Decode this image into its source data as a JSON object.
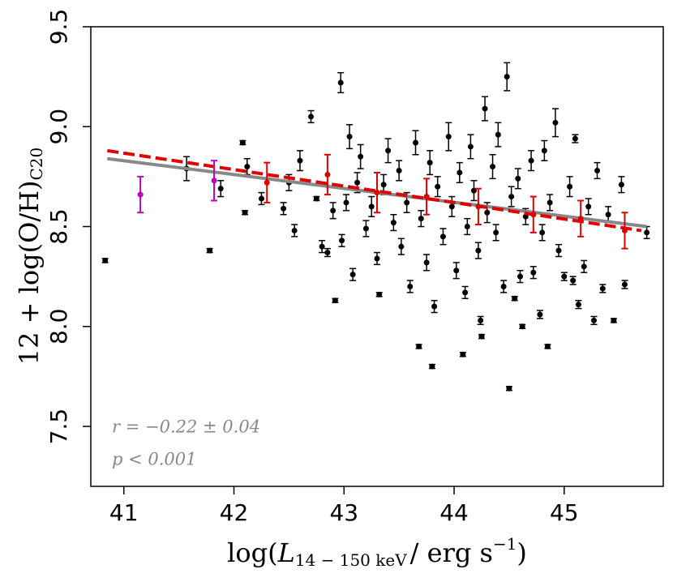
{
  "chart_data": {
    "type": "scatter",
    "xlabel": [
      "log(",
      "L",
      "14 − 150 keV",
      "/ erg s",
      "−1",
      ")"
    ],
    "ylabel": [
      "12 + log(O/H)",
      "C20"
    ],
    "annotations": [
      "r = −0.22 ± 0.04",
      "p < 0.001"
    ],
    "annotation_color": "#888888",
    "xlim": [
      40.7,
      45.9
    ],
    "ylim": [
      7.2,
      9.5
    ],
    "xticks": [
      41,
      42,
      43,
      44,
      45
    ],
    "yticks": [
      7.5,
      {
        "value": 8,
        "label": "8.0"
      },
      8.5,
      {
        "value": 9,
        "label": "9.0"
      },
      9.5
    ],
    "series": [
      {
        "color": "#000000",
        "x": [
          40.83,
          41.57,
          41.78,
          41.88,
          42.08,
          42.1,
          42.12,
          42.25,
          42.45,
          42.5,
          42.55,
          42.6,
          42.7,
          42.75,
          42.8,
          42.85,
          42.9,
          42.92,
          42.97,
          42.98,
          43.02,
          43.05,
          43.08,
          43.12,
          43.15,
          43.2,
          43.25,
          43.3,
          43.32,
          43.36,
          43.4,
          43.45,
          43.5,
          43.52,
          43.57,
          43.6,
          43.65,
          43.68,
          43.7,
          43.75,
          43.78,
          43.8,
          43.82,
          43.85,
          43.9,
          43.95,
          43.98,
          44.02,
          44.05,
          44.08,
          44.1,
          44.12,
          44.15,
          44.18,
          44.22,
          44.24,
          44.25,
          44.28,
          44.3,
          44.35,
          44.38,
          44.4,
          44.45,
          44.48,
          44.5,
          44.52,
          44.55,
          44.58,
          44.6,
          44.62,
          44.65,
          44.7,
          44.72,
          44.78,
          44.8,
          44.82,
          44.85,
          44.87,
          44.92,
          44.95,
          45.0,
          45.05,
          45.08,
          45.1,
          45.13,
          45.18,
          45.22,
          45.27,
          45.3,
          45.35,
          45.4,
          45.45,
          45.52,
          45.55,
          45.75
        ],
        "values": [
          8.33,
          8.79,
          8.38,
          8.69,
          8.92,
          8.57,
          8.8,
          8.64,
          8.59,
          8.72,
          8.48,
          8.83,
          9.05,
          8.64,
          8.4,
          8.37,
          8.58,
          8.13,
          9.22,
          8.43,
          8.62,
          8.95,
          8.26,
          8.72,
          8.85,
          8.49,
          8.6,
          8.34,
          8.16,
          8.71,
          8.88,
          8.52,
          8.78,
          8.4,
          8.62,
          8.2,
          8.92,
          7.9,
          8.54,
          8.32,
          8.82,
          7.8,
          8.1,
          8.7,
          8.45,
          8.95,
          8.6,
          8.28,
          8.77,
          7.86,
          8.17,
          8.5,
          8.9,
          8.68,
          8.38,
          8.03,
          7.95,
          9.09,
          8.57,
          8.8,
          8.47,
          8.96,
          8.2,
          9.25,
          7.69,
          8.65,
          8.14,
          8.74,
          8.25,
          8,
          8.55,
          8.83,
          8.27,
          8.06,
          8.47,
          8.88,
          7.9,
          8.62,
          9.02,
          8.38,
          8.25,
          8.7,
          8.23,
          8.94,
          8.11,
          8.3,
          8.6,
          8.03,
          8.78,
          8.19,
          8.56,
          8.03,
          8.71,
          8.21,
          8.47
        ],
        "errors": [
          0.01,
          0.06,
          0.01,
          0.04,
          0.01,
          0.01,
          0.04,
          0.03,
          0.03,
          0.04,
          0.03,
          0.05,
          0.03,
          0.01,
          0.03,
          0.02,
          0.04,
          0.01,
          0.05,
          0.03,
          0.04,
          0.06,
          0.03,
          0.05,
          0.06,
          0.04,
          0.05,
          0.03,
          0.01,
          0.05,
          0.06,
          0.04,
          0.05,
          0.04,
          0.05,
          0.03,
          0.06,
          0.01,
          0.04,
          0.04,
          0.06,
          0.01,
          0.03,
          0.05,
          0.04,
          0.07,
          0.05,
          0.04,
          0.05,
          0.01,
          0.03,
          0.04,
          0.06,
          0.05,
          0.04,
          0.02,
          0.01,
          0.06,
          0.05,
          0.06,
          0.04,
          0.06,
          0.03,
          0.07,
          0.01,
          0.05,
          0.01,
          0.05,
          0.03,
          0.01,
          0.04,
          0.05,
          0.03,
          0.02,
          0.04,
          0.05,
          0.01,
          0.04,
          0.07,
          0.03,
          0.02,
          0.05,
          0.02,
          0.02,
          0.02,
          0.03,
          0.04,
          0.02,
          0.04,
          0.02,
          0.04,
          0.01,
          0.04,
          0.02,
          0.03
        ]
      },
      {
        "color": "#e00000",
        "x": [
          42.3,
          42.85,
          43.3,
          43.75,
          44.22,
          44.72,
          45.15,
          45.55
        ],
        "values": [
          8.72,
          8.76,
          8.67,
          8.65,
          8.6,
          8.56,
          8.54,
          8.48
        ],
        "errors": [
          0.1,
          0.1,
          0.1,
          0.09,
          0.09,
          0.09,
          0.09,
          0.09
        ]
      },
      {
        "color": "#c000c0",
        "x": [
          41.15,
          41.82
        ],
        "values": [
          8.66,
          8.73
        ],
        "errors": [
          0.09,
          0.1
        ]
      }
    ],
    "fits": [
      {
        "color": "#888888",
        "dashed": false,
        "x": [
          40.85,
          45.75
        ],
        "values": [
          8.84,
          8.5
        ]
      },
      {
        "color": "#e00000",
        "dashed": true,
        "x": [
          40.85,
          45.7
        ],
        "values": [
          8.88,
          8.48
        ]
      }
    ]
  }
}
